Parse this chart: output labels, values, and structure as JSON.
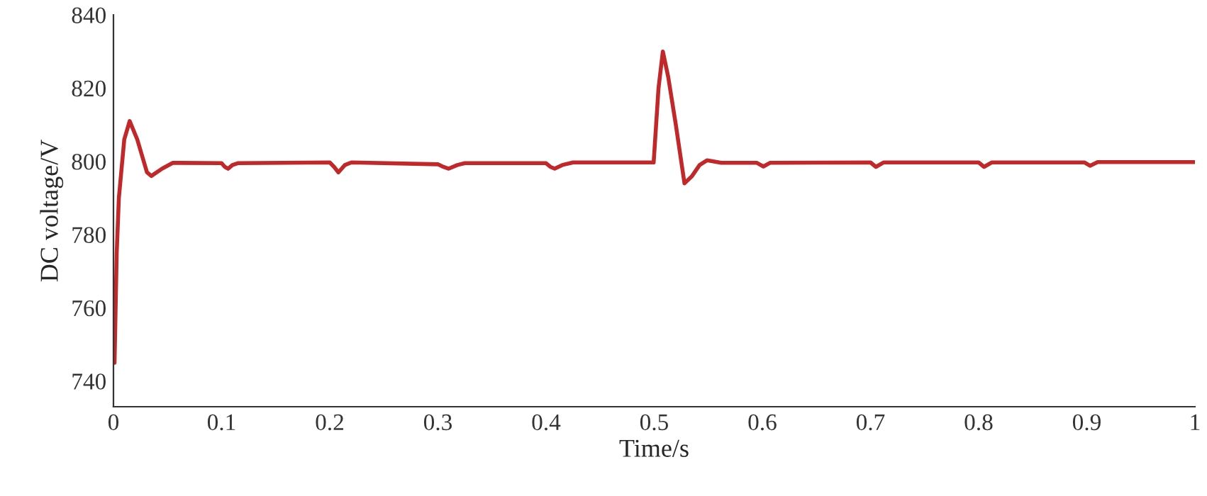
{
  "chart_data": {
    "type": "line",
    "xlabel": "Time/s",
    "ylabel": "DC voltage/V",
    "xlim": [
      0,
      1
    ],
    "ylim": [
      733,
      840
    ],
    "xticks": [
      0,
      0.1,
      0.2,
      0.3,
      0.4,
      0.5,
      0.6,
      0.7,
      0.8,
      0.9,
      1
    ],
    "yticks": [
      740,
      760,
      780,
      800,
      820,
      840
    ],
    "grid": false,
    "marker": "none",
    "line_style": "solid",
    "series": [
      {
        "color": "#c0282a",
        "x": [
          0.001,
          0.003,
          0.005,
          0.01,
          0.015,
          0.022,
          0.031,
          0.035,
          0.045,
          0.055,
          0.1,
          0.103,
          0.106,
          0.11,
          0.115,
          0.2,
          0.204,
          0.208,
          0.214,
          0.22,
          0.3,
          0.305,
          0.31,
          0.318,
          0.325,
          0.4,
          0.404,
          0.408,
          0.415,
          0.425,
          0.4995,
          0.504,
          0.508,
          0.513,
          0.52,
          0.528,
          0.535,
          0.542,
          0.549,
          0.562,
          0.595,
          0.601,
          0.607,
          0.7,
          0.705,
          0.712,
          0.8,
          0.805,
          0.812,
          0.898,
          0.903,
          0.91,
          1.0
        ],
        "values": [
          745,
          775,
          790,
          806,
          811,
          806,
          797,
          796,
          798,
          799.6,
          799.5,
          798.5,
          798,
          799,
          799.5,
          799.7,
          798.5,
          797,
          799,
          799.7,
          799.2,
          798.5,
          798,
          799,
          799.5,
          799.5,
          798.5,
          798,
          799,
          799.7,
          799.7,
          820,
          830,
          823,
          810,
          794,
          796,
          799,
          800.3,
          799.6,
          799.6,
          798.6,
          799.6,
          799.7,
          798.5,
          799.7,
          799.7,
          798.5,
          799.7,
          799.7,
          798.8,
          799.8,
          799.8
        ]
      }
    ]
  }
}
